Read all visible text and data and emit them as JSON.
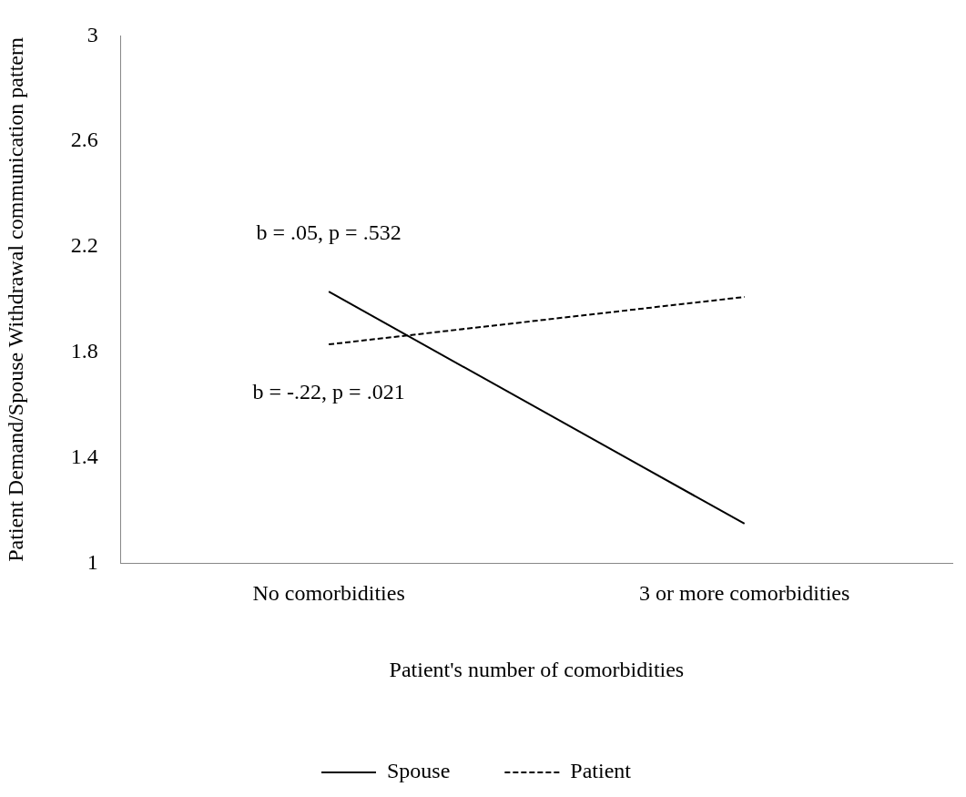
{
  "chart_data": {
    "type": "line",
    "xlabel": "Patient's number of comorbidities",
    "ylabel": "Patient Demand/Spouse Withdrawal communication pattern",
    "categories": [
      "No comorbidities",
      "3 or more comorbidities"
    ],
    "series": [
      {
        "name": "Spouse",
        "color": "#000000",
        "values": [
          2.03,
          1.15
        ],
        "line_style": "solid"
      },
      {
        "name": "Patient",
        "color": "#000000",
        "values": [
          1.83,
          2.01
        ],
        "line_style": "dashed"
      }
    ],
    "ylim": [
      1,
      3
    ],
    "yticks": [
      1,
      1.4,
      1.8,
      2.2,
      2.6,
      3
    ],
    "legend": "bottom",
    "marker": "none",
    "annotations": [
      "b = .05, p = .532",
      "b = -.22, p = .021"
    ]
  }
}
